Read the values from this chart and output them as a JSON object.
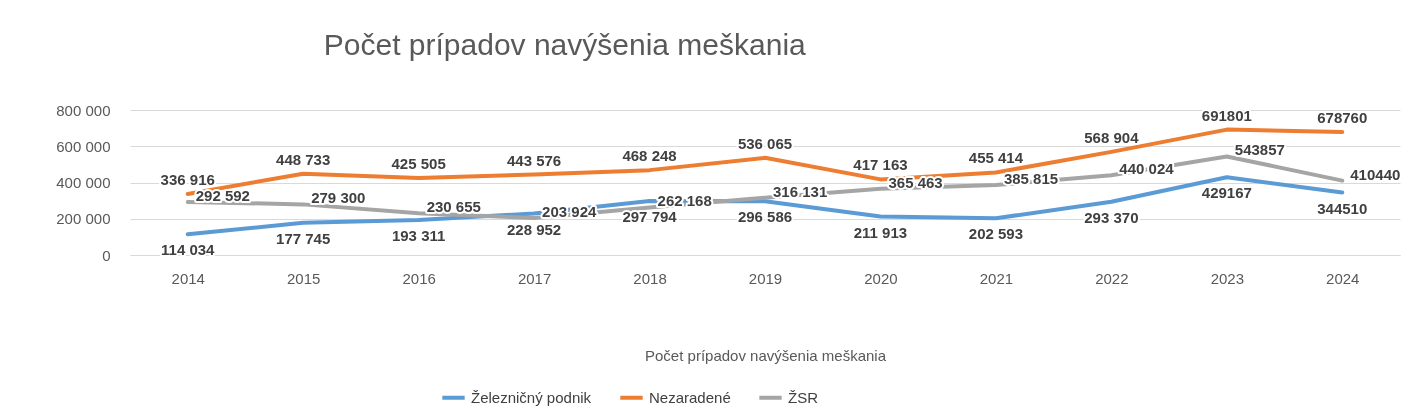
{
  "chart_data": {
    "type": "line",
    "title": "Počet prípadov navýšenia meškania",
    "xlabel": "Počet prípadov navýšenia meškania",
    "categories": [
      "2014",
      "2015",
      "2016",
      "2017",
      "2018",
      "2019",
      "2020",
      "2021",
      "2022",
      "2023",
      "2024"
    ],
    "series": [
      {
        "name": "Železničný podnik",
        "color": "#5b9bd5",
        "values": [
          114034,
          177745,
          193311,
          228952,
          297794,
          296586,
          211913,
          202593,
          293370,
          429167,
          344510
        ],
        "value_labels": [
          "114 034",
          "177 745",
          "193 311",
          "228 952",
          "297 794",
          "296 586",
          "211 913",
          "202 593",
          "293 370",
          "429167",
          "344510"
        ]
      },
      {
        "name": "Nezaradené",
        "color": "#ed7d31",
        "values": [
          336916,
          448733,
          425505,
          443576,
          468248,
          536065,
          417163,
          455414,
          568904,
          691801,
          678760
        ],
        "value_labels": [
          "336 916",
          "448 733",
          "425 505",
          "443 576",
          "468 248",
          "536 065",
          "417 163",
          "455 414",
          "568 904",
          "691801",
          "678760"
        ]
      },
      {
        "name": "ŽSR",
        "color": "#a5a5a5",
        "values": [
          292592,
          279300,
          230655,
          203924,
          262168,
          316131,
          365463,
          385815,
          440024,
          543857,
          410440
        ],
        "value_labels": [
          "292 592",
          "279 300",
          "230 655",
          "203 924",
          "262 168",
          "316 131",
          "365 463",
          "385 815",
          "440 024",
          "543857",
          "410440"
        ]
      }
    ],
    "ylim": [
      0,
      800000
    ],
    "yticks": [
      {
        "value": 0,
        "label": "0"
      },
      {
        "value": 200000,
        "label": "200 000"
      },
      {
        "value": 400000,
        "label": "400 000"
      },
      {
        "value": 600000,
        "label": "600 000"
      },
      {
        "value": 800000,
        "label": "800 000"
      }
    ],
    "grid": "y",
    "legend": "bottom",
    "line_style": "solid",
    "marker": "none"
  }
}
